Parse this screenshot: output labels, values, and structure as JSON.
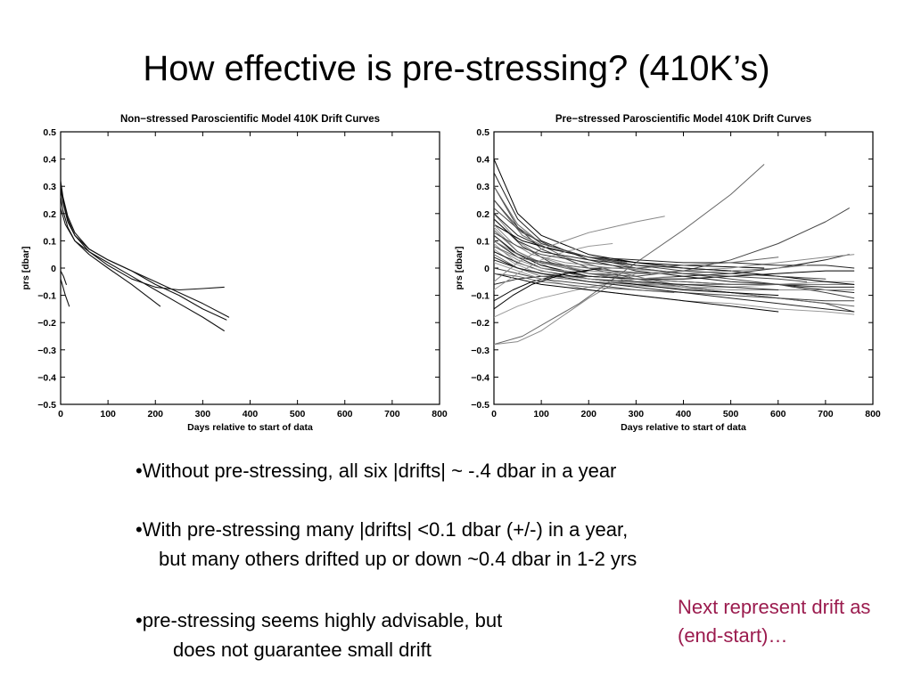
{
  "slide": {
    "title": "How effective is pre-stressing? (410K’s)",
    "bullets": [
      {
        "line1": "•Without pre-stressing, all six |drifts| ~ -.4 dbar in a year",
        "line2": ""
      },
      {
        "line1": "•With pre-stressing many |drifts| <0.1 dbar (+/-) in a year,",
        "line2": "but many others drifted up or down ~0.4 dbar in 1-2 yrs"
      },
      {
        "line1": "•pre-stressing seems highly advisable, but",
        "line2": "does not guarantee small drift"
      }
    ],
    "note": "Next represent drift as (end-start)…",
    "note_color": "#9b1b4e"
  },
  "chart_data": [
    {
      "type": "line",
      "title": "Non−stressed Paroscientific Model 410K Drift Curves",
      "xlabel": "Days relative to start of data",
      "ylabel": "prs [dbar]",
      "xlim": [
        0,
        800
      ],
      "ylim": [
        -0.5,
        0.5
      ],
      "xticks": [
        0,
        100,
        200,
        300,
        400,
        500,
        600,
        700,
        800
      ],
      "yticks": [
        0.5,
        0.4,
        0.3,
        0.2,
        0.1,
        0,
        -0.1,
        -0.2,
        -0.3,
        -0.4,
        -0.5
      ],
      "ytick_labels": [
        "0.5",
        "0.4",
        "0.3",
        "0.2",
        "0.1",
        "0",
        "−0.1",
        "−0.2",
        "−0.3",
        "−0.4",
        "−0.5"
      ],
      "grid": false,
      "series": [
        {
          "x": [
            0,
            5,
            15,
            30,
            60,
            100,
            150,
            200,
            250,
            300,
            355
          ],
          "y": [
            0.32,
            0.26,
            0.19,
            0.13,
            0.07,
            0.03,
            -0.01,
            -0.05,
            -0.09,
            -0.13,
            -0.18
          ]
        },
        {
          "x": [
            0,
            5,
            15,
            30,
            60,
            100,
            150,
            200,
            250,
            300,
            345
          ],
          "y": [
            0.29,
            0.24,
            0.17,
            0.12,
            0.06,
            0.02,
            -0.03,
            -0.08,
            -0.13,
            -0.18,
            -0.23
          ]
        },
        {
          "x": [
            0,
            5,
            15,
            30,
            60,
            100,
            150,
            200,
            250,
            300,
            350
          ],
          "y": [
            0.3,
            0.25,
            0.18,
            0.12,
            0.07,
            0.03,
            -0.01,
            -0.06,
            -0.1,
            -0.15,
            -0.19
          ]
        },
        {
          "x": [
            0,
            5,
            15,
            30,
            60,
            100,
            150,
            210
          ],
          "y": [
            0.26,
            0.21,
            0.15,
            0.1,
            0.05,
            0.0,
            -0.06,
            -0.14
          ]
        },
        {
          "x": [
            0,
            10,
            30,
            60,
            100,
            150,
            200,
            250,
            300,
            345
          ],
          "y": [
            0.22,
            0.16,
            0.1,
            0.06,
            0.01,
            -0.04,
            -0.07,
            -0.08,
            -0.075,
            -0.07
          ]
        },
        {
          "x": [
            0,
            5,
            10,
            18
          ],
          "y": [
            -0.04,
            -0.07,
            -0.1,
            -0.14
          ]
        },
        {
          "x": [
            0,
            6,
            12
          ],
          "y": [
            -0.01,
            -0.03,
            -0.06
          ]
        }
      ]
    },
    {
      "type": "line",
      "title": "Pre−stressed Paroscientific Model 410K Drift Curves",
      "xlabel": "Days relative to start of data",
      "ylabel": "prs [dbar]",
      "xlim": [
        0,
        800
      ],
      "ylim": [
        -0.5,
        0.5
      ],
      "xticks": [
        0,
        100,
        200,
        300,
        400,
        500,
        600,
        700,
        800
      ],
      "yticks": [
        0.5,
        0.4,
        0.3,
        0.2,
        0.1,
        0,
        -0.1,
        -0.2,
        -0.3,
        -0.4,
        -0.5
      ],
      "ytick_labels": [
        "0.5",
        "0.4",
        "0.3",
        "0.2",
        "0.1",
        "0",
        "−0.1",
        "−0.2",
        "−0.3",
        "−0.4",
        "−0.5"
      ],
      "grid": false,
      "series": [
        {
          "x": [
            0,
            50,
            100,
            200,
            300,
            400,
            570
          ],
          "y": [
            0.4,
            0.2,
            0.12,
            0.05,
            0.02,
            0.01,
            0.0
          ]
        },
        {
          "x": [
            0,
            50,
            100,
            200,
            300,
            400,
            500,
            600,
            700,
            760
          ],
          "y": [
            0.35,
            0.18,
            0.1,
            0.03,
            -0.01,
            -0.03,
            -0.05,
            -0.06,
            -0.08,
            -0.09
          ]
        },
        {
          "x": [
            0,
            50,
            100,
            200,
            300,
            400,
            500,
            600,
            700,
            760
          ],
          "y": [
            0.3,
            0.15,
            0.07,
            0.0,
            -0.04,
            -0.07,
            -0.09,
            -0.11,
            -0.13,
            -0.16
          ]
        },
        {
          "x": [
            0,
            60,
            150,
            250,
            350,
            450,
            550,
            650,
            760
          ],
          "y": [
            0.25,
            0.12,
            0.04,
            -0.01,
            -0.05,
            -0.08,
            -0.1,
            -0.12,
            -0.14
          ]
        },
        {
          "x": [
            0,
            50,
            100,
            200,
            300,
            400,
            500,
            600,
            760
          ],
          "y": [
            0.2,
            0.1,
            0.04,
            -0.02,
            -0.05,
            -0.07,
            -0.08,
            -0.08,
            -0.08
          ]
        },
        {
          "x": [
            0,
            50,
            120,
            200,
            300,
            400,
            500,
            600,
            700,
            760
          ],
          "y": [
            0.15,
            0.06,
            0.0,
            -0.04,
            -0.06,
            -0.07,
            -0.07,
            -0.06,
            -0.05,
            -0.05
          ]
        },
        {
          "x": [
            0,
            50,
            100,
            200,
            300,
            400,
            500,
            600,
            700,
            760
          ],
          "y": [
            0.12,
            0.05,
            0.01,
            -0.03,
            -0.04,
            -0.04,
            -0.03,
            -0.02,
            -0.01,
            -0.01
          ]
        },
        {
          "x": [
            0,
            50,
            100,
            200,
            300,
            400,
            500,
            600,
            700,
            750
          ],
          "y": [
            0.1,
            0.04,
            0.0,
            -0.03,
            -0.04,
            -0.03,
            -0.02,
            0.0,
            0.03,
            0.05
          ]
        },
        {
          "x": [
            0,
            60,
            120,
            200,
            300,
            400,
            500,
            600,
            700,
            750
          ],
          "y": [
            0.18,
            0.08,
            0.02,
            -0.02,
            -0.03,
            -0.01,
            0.03,
            0.09,
            0.17,
            0.22
          ]
        },
        {
          "x": [
            0,
            60,
            120,
            180,
            220,
            260,
            300,
            400,
            500,
            570
          ],
          "y": [
            -0.28,
            -0.25,
            -0.19,
            -0.13,
            -0.08,
            -0.03,
            0.02,
            0.14,
            0.27,
            0.38
          ]
        },
        {
          "x": [
            0,
            50,
            100,
            150,
            200,
            250,
            300
          ],
          "y": [
            -0.28,
            -0.27,
            -0.23,
            -0.17,
            -0.11,
            -0.06,
            -0.02
          ]
        },
        {
          "x": [
            0,
            50,
            100,
            200,
            300,
            380
          ],
          "y": [
            -0.18,
            -0.14,
            -0.11,
            -0.07,
            -0.04,
            -0.03
          ]
        },
        {
          "x": [
            0,
            40,
            80,
            150,
            200
          ],
          "y": [
            -0.12,
            -0.08,
            -0.05,
            -0.02,
            -0.01
          ]
        },
        {
          "x": [
            0,
            50,
            100,
            200,
            300,
            400,
            500,
            600,
            700,
            760
          ],
          "y": [
            -0.06,
            -0.04,
            -0.03,
            -0.03,
            -0.04,
            -0.05,
            -0.06,
            -0.06,
            -0.07,
            -0.07
          ]
        },
        {
          "x": [
            0,
            50,
            100,
            200,
            300,
            400,
            500,
            600,
            700,
            760
          ],
          "y": [
            0.0,
            -0.02,
            -0.04,
            -0.06,
            -0.08,
            -0.09,
            -0.1,
            -0.11,
            -0.12,
            -0.12
          ]
        },
        {
          "x": [
            0,
            50,
            100,
            200,
            300,
            400,
            500,
            600,
            700,
            760
          ],
          "y": [
            0.05,
            0.0,
            -0.03,
            -0.05,
            -0.06,
            -0.06,
            -0.06,
            -0.06,
            -0.06,
            -0.06
          ]
        },
        {
          "x": [
            0,
            50,
            100,
            200,
            300,
            400,
            500,
            600,
            700,
            760
          ],
          "y": [
            0.08,
            0.03,
            0.0,
            -0.02,
            -0.02,
            -0.01,
            0.0,
            0.02,
            0.04,
            0.05
          ]
        },
        {
          "x": [
            0,
            50,
            100,
            200,
            300,
            400,
            500,
            600,
            700,
            760
          ],
          "y": [
            0.02,
            -0.01,
            -0.04,
            -0.08,
            -0.1,
            -0.12,
            -0.13,
            -0.15,
            -0.16,
            -0.17
          ]
        },
        {
          "x": [
            0,
            60,
            120,
            200,
            300,
            400,
            500,
            600,
            700,
            760
          ],
          "y": [
            0.16,
            0.1,
            0.07,
            0.04,
            0.02,
            0.0,
            -0.01,
            -0.03,
            -0.05,
            -0.06
          ]
        },
        {
          "x": [
            0,
            50,
            100,
            200,
            300,
            400,
            500,
            600,
            700,
            760
          ],
          "y": [
            0.2,
            0.12,
            0.08,
            0.04,
            0.03,
            0.02,
            0.02,
            0.01,
            0.01,
            0.0
          ]
        },
        {
          "x": [
            0,
            60,
            120,
            200,
            300,
            400,
            500,
            600,
            660
          ],
          "y": [
            0.22,
            0.13,
            0.08,
            0.04,
            0.0,
            -0.02,
            -0.03,
            -0.04,
            -0.05
          ]
        },
        {
          "x": [
            0,
            50,
            100,
            200,
            300,
            400,
            500,
            600,
            660
          ],
          "y": [
            0.14,
            0.06,
            0.02,
            -0.02,
            -0.04,
            -0.05,
            -0.06,
            -0.06,
            -0.06
          ]
        },
        {
          "x": [
            0,
            50,
            100,
            200,
            300,
            400,
            500,
            600,
            660
          ],
          "y": [
            0.1,
            0.05,
            0.02,
            -0.01,
            -0.02,
            -0.02,
            -0.01,
            0.0,
            0.01
          ]
        },
        {
          "x": [
            0,
            40,
            80,
            150,
            250,
            350,
            440
          ],
          "y": [
            0.07,
            0.02,
            -0.01,
            -0.04,
            -0.06,
            -0.07,
            -0.08
          ]
        },
        {
          "x": [
            0,
            50,
            100,
            200,
            300,
            400,
            500,
            600
          ],
          "y": [
            -0.02,
            -0.04,
            -0.06,
            -0.08,
            -0.1,
            -0.12,
            -0.14,
            -0.16
          ]
        },
        {
          "x": [
            0,
            50,
            100,
            200,
            300,
            400,
            500,
            600
          ],
          "y": [
            0.04,
            0.0,
            -0.02,
            -0.04,
            -0.05,
            -0.06,
            -0.07,
            -0.08
          ]
        },
        {
          "x": [
            0,
            40,
            80,
            150,
            250,
            330
          ],
          "y": [
            0.12,
            0.06,
            0.03,
            0.01,
            -0.01,
            -0.02
          ]
        },
        {
          "x": [
            0,
            50,
            100,
            200,
            280
          ],
          "y": [
            0.3,
            0.16,
            0.09,
            0.04,
            0.02
          ]
        },
        {
          "x": [
            0,
            50,
            100,
            150,
            200,
            250,
            300,
            360
          ],
          "y": [
            -0.05,
            0.02,
            0.07,
            0.1,
            0.13,
            0.15,
            0.17,
            0.19
          ]
        },
        {
          "x": [
            0,
            50,
            100,
            150,
            200,
            250
          ],
          "y": [
            -0.08,
            -0.02,
            0.03,
            0.06,
            0.08,
            0.09
          ]
        },
        {
          "x": [
            0,
            50,
            100,
            200,
            300,
            400,
            500,
            600
          ],
          "y": [
            0.06,
            0.02,
            -0.01,
            -0.04,
            -0.06,
            -0.08,
            -0.09,
            -0.1
          ]
        },
        {
          "x": [
            0,
            50,
            100,
            200,
            300,
            400,
            500,
            600,
            700,
            760
          ],
          "y": [
            0.03,
            0.0,
            -0.02,
            -0.05,
            -0.07,
            -0.09,
            -0.11,
            -0.13,
            -0.15,
            -0.16
          ]
        },
        {
          "x": [
            0,
            50,
            100,
            200,
            300,
            400,
            500,
            600,
            700
          ],
          "y": [
            0.25,
            0.15,
            0.09,
            0.04,
            0.01,
            -0.01,
            -0.02,
            -0.03,
            -0.04
          ]
        },
        {
          "x": [
            0,
            50,
            100,
            200,
            300,
            380
          ],
          "y": [
            -0.02,
            -0.03,
            -0.05,
            -0.07,
            -0.08,
            -0.09
          ]
        },
        {
          "x": [
            0,
            40,
            80,
            150,
            250,
            350
          ],
          "y": [
            0.16,
            0.09,
            0.05,
            0.02,
            0.0,
            -0.01
          ]
        },
        {
          "x": [
            0,
            40,
            80,
            150,
            250,
            350
          ],
          "y": [
            0.09,
            0.03,
            0.0,
            -0.03,
            -0.05,
            -0.06
          ]
        },
        {
          "x": [
            0,
            40,
            80,
            150,
            230
          ],
          "y": [
            -0.15,
            -0.1,
            -0.06,
            -0.02,
            0.0
          ]
        },
        {
          "x": [
            0,
            50,
            100,
            200,
            300,
            400,
            500
          ],
          "y": [
            0.18,
            0.1,
            0.06,
            0.03,
            0.01,
            0.0,
            -0.01
          ]
        },
        {
          "x": [
            0,
            50,
            100,
            200,
            300,
            400,
            500,
            600,
            700,
            760
          ],
          "y": [
            0.13,
            0.08,
            0.05,
            0.02,
            0.0,
            -0.02,
            -0.04,
            -0.06,
            -0.09,
            -0.11
          ]
        },
        {
          "x": [
            0,
            50,
            100,
            200,
            300,
            400,
            500,
            600
          ],
          "y": [
            0.08,
            0.04,
            0.02,
            0.0,
            0.0,
            0.01,
            0.02,
            0.04
          ]
        }
      ]
    }
  ]
}
